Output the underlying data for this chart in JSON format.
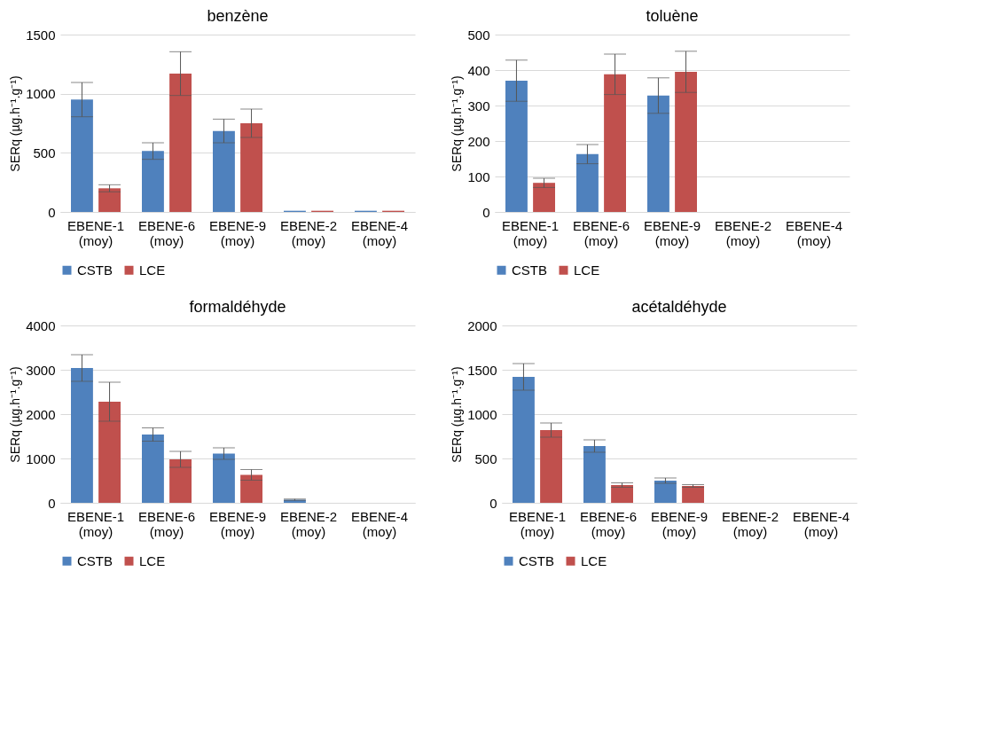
{
  "chart_data": [
    {
      "type": "bar",
      "title": "benzène",
      "ylabel": "SERq (µg.h⁻¹.g⁻¹)",
      "categories": [
        "EBENE-1\n(moy)",
        "EBENE-6\n(moy)",
        "EBENE-9\n(moy)",
        "EBENE-2\n(moy)",
        "EBENE-4\n(moy)"
      ],
      "ylim": [
        0,
        1500
      ],
      "yticks": [
        0,
        500,
        1000,
        1500
      ],
      "grid": "y",
      "legend": "bottom",
      "series": [
        {
          "name": "CSTB",
          "color": "#4f81bd",
          "values": [
            950,
            515,
            685,
            10,
            10
          ],
          "errors": [
            145,
            70,
            100,
            null,
            null
          ]
        },
        {
          "name": "LCE",
          "color": "#c0504d",
          "values": [
            200,
            1170,
            750,
            10,
            10
          ],
          "errors": [
            30,
            185,
            120,
            null,
            null
          ]
        }
      ]
    },
    {
      "type": "bar",
      "title": "toluène",
      "ylabel": "SERq (µg.h⁻¹.g⁻¹)",
      "categories": [
        "EBENE-1\n(moy)",
        "EBENE-6\n(moy)",
        "EBENE-9\n(moy)",
        "EBENE-2\n(moy)",
        "EBENE-4\n(moy)"
      ],
      "ylim": [
        0,
        500
      ],
      "yticks": [
        0,
        100,
        200,
        300,
        400,
        500
      ],
      "grid": "y",
      "legend": "bottom",
      "series": [
        {
          "name": "CSTB",
          "color": "#4f81bd",
          "values": [
            370,
            163,
            328,
            0,
            0
          ],
          "errors": [
            58,
            27,
            50,
            null,
            null
          ]
        },
        {
          "name": "LCE",
          "color": "#c0504d",
          "values": [
            82,
            388,
            395,
            0,
            0
          ],
          "errors": [
            13,
            57,
            58,
            null,
            null
          ]
        }
      ]
    },
    {
      "type": "bar",
      "title": "formaldéhyde",
      "ylabel": "SERq (µg.h⁻¹.g⁻¹)",
      "categories": [
        "EBENE-1\n(moy)",
        "EBENE-6\n(moy)",
        "EBENE-9\n(moy)",
        "EBENE-2\n(moy)",
        "EBENE-4\n(moy)"
      ],
      "ylim": [
        0,
        4000
      ],
      "yticks": [
        0,
        1000,
        2000,
        3000,
        4000
      ],
      "grid": "y",
      "legend": "bottom",
      "series": [
        {
          "name": "CSTB",
          "color": "#4f81bd",
          "values": [
            3040,
            1540,
            1110,
            70,
            0
          ],
          "errors": [
            300,
            150,
            130,
            15,
            null
          ]
        },
        {
          "name": "LCE",
          "color": "#c0504d",
          "values": [
            2280,
            980,
            630,
            0,
            0
          ],
          "errors": [
            440,
            180,
            120,
            null,
            null
          ]
        }
      ]
    },
    {
      "type": "bar",
      "title": "acétaldéhyde",
      "ylabel": "SERq (µg.h⁻¹.g⁻¹)",
      "categories": [
        "EBENE-1\n(moy)",
        "EBENE-6\n(moy)",
        "EBENE-9\n(moy)",
        "EBENE-2\n(moy)",
        "EBENE-4\n(moy)"
      ],
      "ylim": [
        0,
        2000
      ],
      "yticks": [
        0,
        500,
        1000,
        1500,
        2000
      ],
      "grid": "y",
      "legend": "bottom",
      "series": [
        {
          "name": "CSTB",
          "color": "#4f81bd",
          "values": [
            1420,
            640,
            250,
            0,
            0
          ],
          "errors": [
            150,
            70,
            30,
            null,
            null
          ]
        },
        {
          "name": "LCE",
          "color": "#c0504d",
          "values": [
            820,
            200,
            190,
            0,
            0
          ],
          "errors": [
            80,
            25,
            15,
            null,
            null
          ]
        }
      ]
    }
  ]
}
